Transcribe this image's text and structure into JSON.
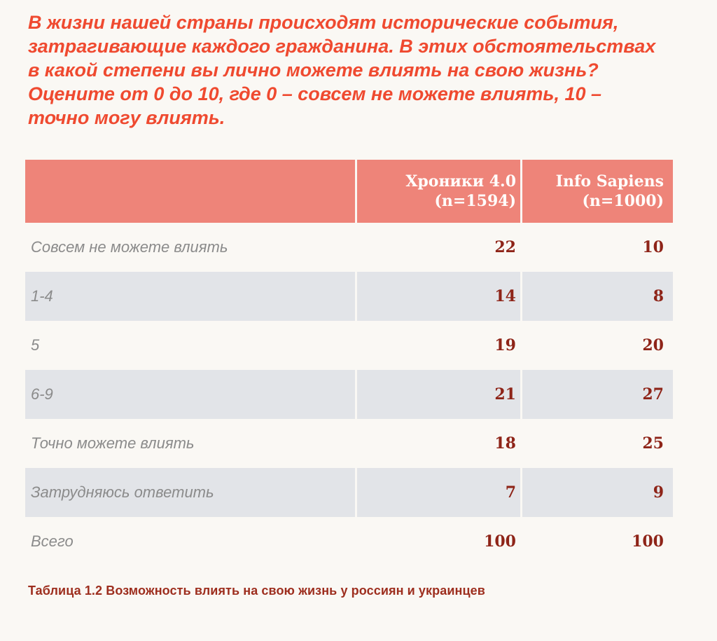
{
  "page": {
    "background_color": "#faf8f4"
  },
  "question": {
    "color": "#ef4a30",
    "lines": [
      "В жизни нашей страны происходят исторические события,",
      "затрагивающие каждого гражданина. В этих обстоятельствах",
      "в какой степени вы лично можете влиять на свою жизнь?",
      "Оцените от 0 до 10, где 0 – совсем не можете влиять, 10 –",
      "точно могу влиять."
    ]
  },
  "table": {
    "header": {
      "background_color": "#ee8479",
      "text_color": "#ffffff",
      "columns": [
        {
          "title": "Хроники 4.0",
          "sample": "(n=1594)"
        },
        {
          "title": "Info Sapiens",
          "sample": "(n=1000)"
        }
      ]
    },
    "rows": [
      {
        "label": "Совсем не можете влиять",
        "values": [
          22,
          10
        ]
      },
      {
        "label": "1-4",
        "values": [
          14,
          8
        ]
      },
      {
        "label": "5",
        "values": [
          19,
          20
        ]
      },
      {
        "label": "6-9",
        "values": [
          21,
          27
        ]
      },
      {
        "label": "Точно можете влиять",
        "values": [
          18,
          25
        ]
      },
      {
        "label": "Затрудняюсь ответить",
        "values": [
          7,
          9
        ]
      },
      {
        "label": "Всего",
        "values": [
          100,
          100
        ]
      }
    ],
    "zebra_color": "#e2e4e8",
    "value_color": "#8e2418",
    "label_color": "#8b8b8b"
  },
  "caption": {
    "text": "Таблица 1.2 Возможность влиять на свою жизнь у россиян и украинцев",
    "color": "#9d2e1e"
  },
  "chart_data": {
    "type": "table",
    "title": "Таблица 1.2 Возможность влиять на свою жизнь у россиян и украинцев",
    "columns": [
      "",
      "Хроники 4.0 (n=1594)",
      "Info Sapiens (n=1000)"
    ],
    "rows": [
      [
        "Совсем не можете влиять",
        22,
        10
      ],
      [
        "1-4",
        14,
        8
      ],
      [
        "5",
        19,
        20
      ],
      [
        "6-9",
        21,
        27
      ],
      [
        "Точно можете влиять",
        18,
        25
      ],
      [
        "Затрудняюсь ответить",
        7,
        9
      ],
      [
        "Всего",
        100,
        100
      ]
    ]
  }
}
